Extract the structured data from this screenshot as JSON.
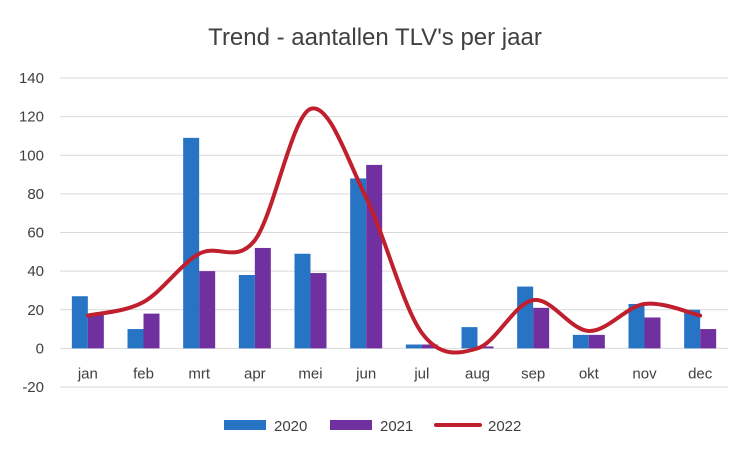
{
  "chart_data": {
    "type": "bar",
    "title": "Trend - aantallen TLV's per jaar",
    "xlabel": "",
    "ylabel": "",
    "categories": [
      "jan",
      "feb",
      "mrt",
      "apr",
      "mei",
      "jun",
      "jul",
      "aug",
      "sep",
      "okt",
      "nov",
      "dec"
    ],
    "ylim": [
      -20,
      140
    ],
    "yticks": [
      -20,
      0,
      20,
      40,
      60,
      80,
      100,
      120,
      140
    ],
    "grid": true,
    "legend_position": "bottom",
    "series": [
      {
        "name": "2020",
        "type": "bar",
        "color": "#2874c4",
        "values": [
          27,
          10,
          109,
          38,
          49,
          88,
          2,
          11,
          32,
          7,
          23,
          20
        ]
      },
      {
        "name": "2021",
        "type": "bar",
        "color": "#7030a0",
        "values": [
          18,
          18,
          40,
          52,
          39,
          95,
          2,
          1,
          21,
          7,
          16,
          10
        ]
      },
      {
        "name": "2022",
        "type": "line",
        "smooth": true,
        "color": "#c0202e",
        "values": [
          17,
          24,
          49,
          56,
          124,
          78,
          8,
          0,
          25,
          9,
          23,
          17
        ]
      }
    ]
  }
}
